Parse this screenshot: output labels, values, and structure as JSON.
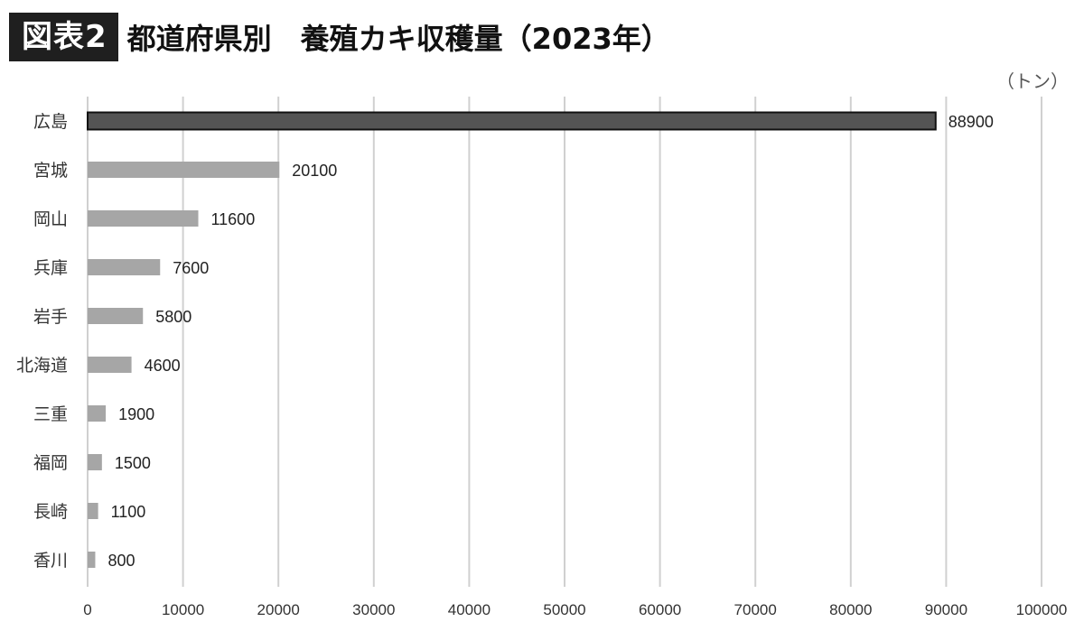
{
  "header": {
    "badge": "図表2",
    "title": "都道府県別　養殖カキ収穫量（2023年）"
  },
  "colors": {
    "highlight_bar": "#545454",
    "highlight_stroke": "#111111",
    "bar": "#a6a6a6",
    "gridline": "#d0d0d0",
    "text": "#333333"
  },
  "chart_data": {
    "type": "bar",
    "orientation": "horizontal",
    "title": "都道府県別　養殖カキ収穫量（2023年）",
    "unit_label": "（トン）",
    "categories": [
      "広島",
      "宮城",
      "岡山",
      "兵庫",
      "岩手",
      "北海道",
      "三重",
      "福岡",
      "長崎",
      "香川"
    ],
    "values": [
      88900,
      20100,
      11600,
      7600,
      5800,
      4600,
      1900,
      1500,
      1100,
      800
    ],
    "data_labels": [
      "88900",
      "20100",
      "11600",
      "7600",
      "5800",
      "4600",
      "1900",
      "1500",
      "1100",
      "800"
    ],
    "highlighted_category": "広島",
    "xlim": [
      0,
      100000
    ],
    "x_ticks": [
      0,
      10000,
      20000,
      30000,
      40000,
      50000,
      60000,
      70000,
      80000,
      90000,
      100000
    ],
    "x_tick_labels": [
      "0",
      "10000",
      "20000",
      "30000",
      "40000",
      "50000",
      "60000",
      "70000",
      "80000",
      "90000",
      "100000"
    ],
    "grid": "vertical",
    "legend": "none"
  }
}
